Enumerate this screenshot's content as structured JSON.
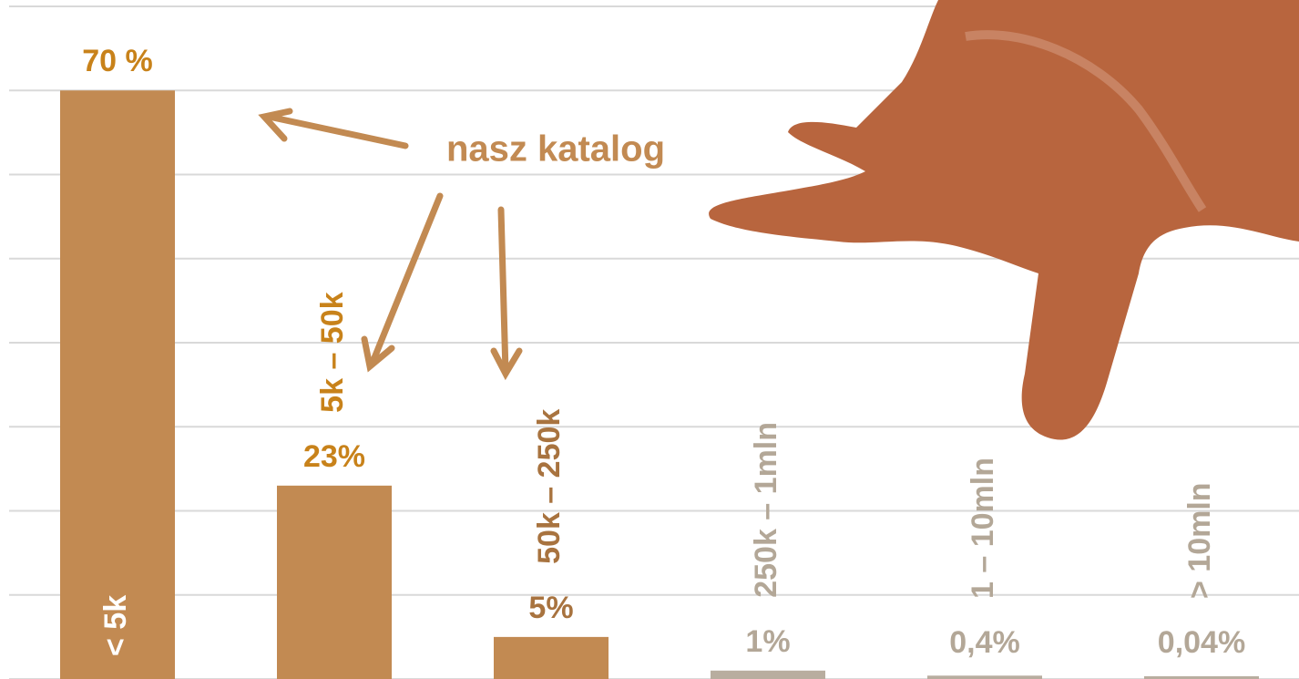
{
  "chart_data": {
    "type": "bar",
    "categories": [
      "< 5k",
      "5k – 50k",
      "50k – 250k",
      "250k – 1mln",
      "1 – 10mln",
      "> 10mln"
    ],
    "values": [
      70,
      23,
      5,
      1,
      0.4,
      0.04
    ],
    "value_labels": [
      "70 %",
      "23%",
      "5%",
      "1%",
      "0,4%",
      "0,04%"
    ],
    "colors": [
      "#c28a52",
      "#c28a52",
      "#c28a52",
      "#b8ad9f",
      "#b8ad9f",
      "#b8ad9f"
    ],
    "value_label_colors": [
      "#c8821a",
      "#c8821a",
      "#a8733f",
      "#b3a797",
      "#b3a797",
      "#b3a797"
    ],
    "ylim": [
      0,
      80
    ],
    "yticks": [
      0,
      10,
      20,
      30,
      40,
      50,
      60,
      70,
      80
    ],
    "grid": true,
    "annotation": "nasz katalog"
  }
}
